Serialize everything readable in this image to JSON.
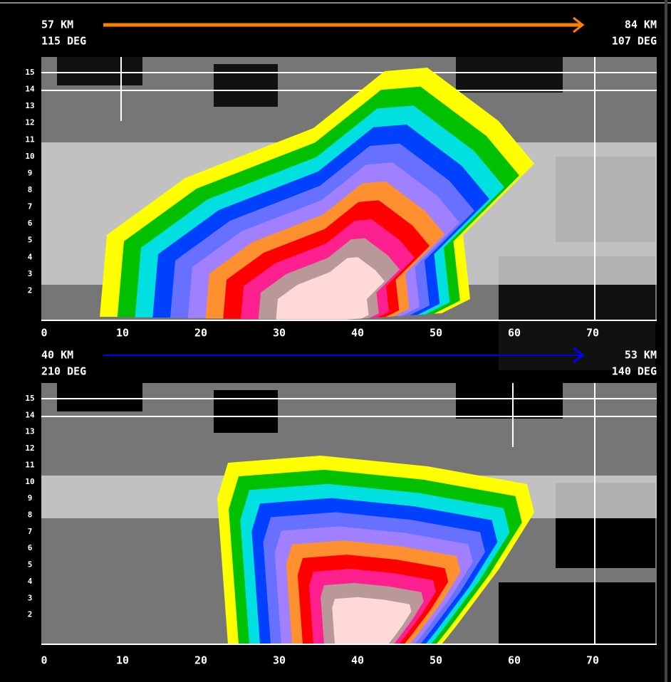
{
  "panels": [
    {
      "start_range": "57 KM",
      "start_azimuth": "115 DEG",
      "end_range": "84 KM",
      "end_azimuth": "107 DEG",
      "x_labels": [
        "0",
        "10",
        "20",
        "30",
        "40",
        "50",
        "60",
        "70"
      ],
      "y_labels": [
        "15",
        "14",
        "13",
        "12",
        "11",
        "10",
        "9",
        "8",
        "7",
        "6",
        "5",
        "4",
        "3",
        "2"
      ]
    },
    {
      "start_range": "40 KM",
      "start_azimuth": "210 DEG",
      "end_range": "53 KM",
      "end_azimuth": "140 DEG",
      "x_labels": [
        "0",
        "10",
        "20",
        "30",
        "40",
        "50",
        "60",
        "70"
      ],
      "y_labels": [
        "15",
        "14",
        "13",
        "12",
        "11",
        "10",
        "9",
        "8",
        "7",
        "6",
        "5",
        "4",
        "3",
        "2"
      ]
    }
  ]
}
